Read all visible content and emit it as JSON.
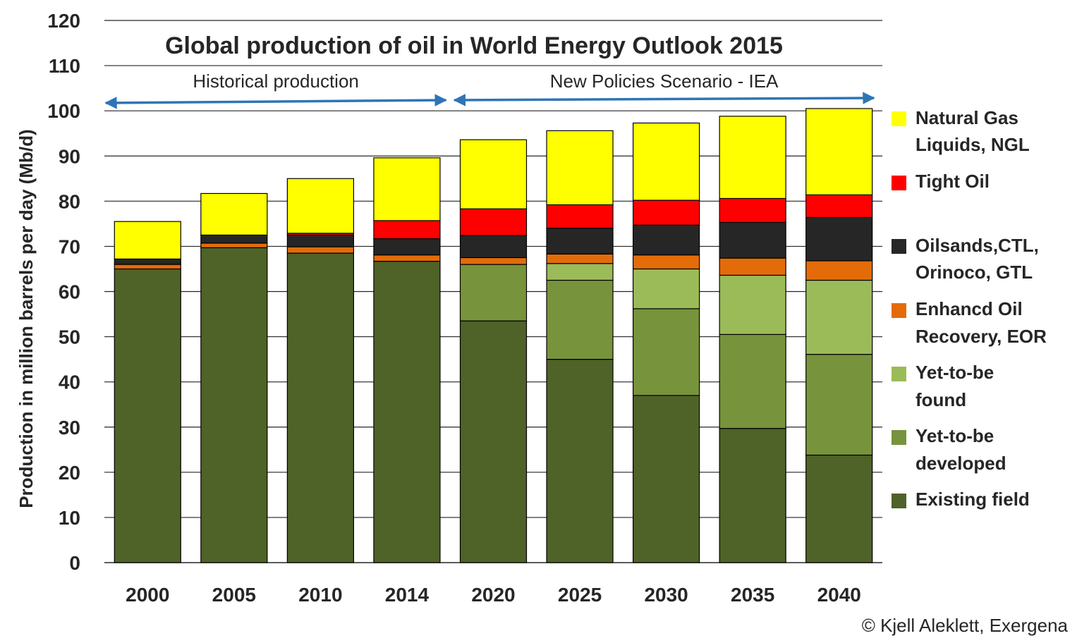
{
  "chart_data": {
    "type": "bar",
    "stacked": true,
    "title": "Global production of oil in World Energy Outlook 2015",
    "ylabel": "Production in million barrels per day (Mb/d)",
    "ylim": [
      0,
      120
    ],
    "yticks": [
      0,
      10,
      20,
      30,
      40,
      50,
      60,
      70,
      80,
      90,
      100,
      110,
      120
    ],
    "grid": true,
    "legend_position": "right",
    "categories": [
      "2000",
      "2005",
      "2010",
      "2014",
      "2020",
      "2025",
      "2030",
      "2035",
      "2040"
    ],
    "series": [
      {
        "name": "Existing field",
        "color": "#4F6228",
        "values": [
          65.0,
          69.7,
          68.5,
          66.7,
          53.5,
          45.0,
          37.0,
          29.7,
          23.8
        ]
      },
      {
        "name": "Yet-to-be developed",
        "color": "#77933C",
        "values": [
          0,
          0,
          0,
          0,
          12.5,
          17.5,
          19.2,
          20.8,
          22.3
        ]
      },
      {
        "name": "Yet-to-be found",
        "color": "#9BBB59",
        "values": [
          0,
          0,
          0,
          0,
          0,
          3.7,
          8.8,
          13.1,
          16.4
        ]
      },
      {
        "name": "Enhancd Oil Recovery, EOR",
        "color": "#E36C09",
        "values": [
          1.0,
          1.0,
          1.4,
          1.4,
          1.5,
          2.1,
          3.1,
          3.8,
          4.3
        ]
      },
      {
        "name": "Oilsands,CTL, Orinoco, GTL",
        "color": "#262626",
        "values": [
          1.2,
          1.8,
          2.6,
          3.6,
          4.9,
          5.7,
          6.6,
          7.9,
          9.6
        ]
      },
      {
        "name": "Tight Oil",
        "color": "#FF0000",
        "values": [
          0,
          0,
          0.4,
          4.0,
          5.9,
          5.2,
          5.5,
          5.3,
          5.0
        ]
      },
      {
        "name": "Natural Gas Liquids, NGL",
        "color": "#FFFF00",
        "values": [
          8.3,
          9.2,
          12.1,
          13.9,
          15.3,
          16.4,
          17.1,
          18.2,
          19.1
        ]
      }
    ],
    "annotations": [
      {
        "label": "Historical production",
        "from": "2000",
        "to": "2014"
      },
      {
        "label": "New Policies Scenario - IEA",
        "from": "2014",
        "to": "2040"
      }
    ],
    "legend_entries": [
      {
        "color": "#FFFF00",
        "lines": [
          "Natural Gas",
          "Liquids, NGL"
        ]
      },
      {
        "color": "#FF0000",
        "lines": [
          "Tight Oil"
        ]
      },
      {
        "color": "#262626",
        "lines": [
          "Oilsands,CTL,",
          "Orinoco, GTL"
        ]
      },
      {
        "color": "#E36C09",
        "lines": [
          "Enhancd Oil",
          "Recovery, EOR"
        ]
      },
      {
        "color": "#9BBB59",
        "lines": [
          "Yet-to-be",
          "found"
        ]
      },
      {
        "color": "#77933C",
        "lines": [
          "Yet-to-be",
          "developed"
        ]
      },
      {
        "color": "#4F6228",
        "lines": [
          "Existing field"
        ]
      }
    ],
    "credit": "© Kjell Aleklett, Exergena",
    "colors": {
      "arrow": "#2E75B6",
      "grid": "#262626",
      "text": "#262626"
    }
  }
}
